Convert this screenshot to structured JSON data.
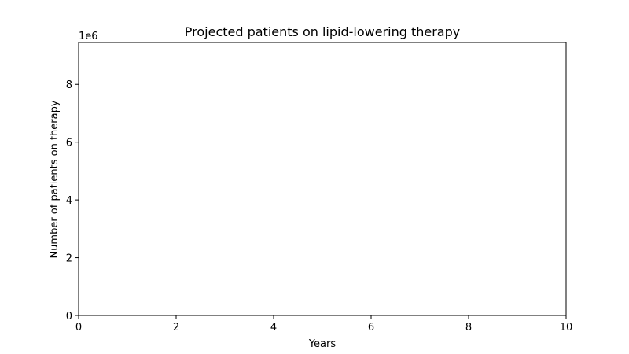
{
  "chart_data": {
    "type": "line",
    "title": "Projected patients on lipid-lowering therapy",
    "xlabel": "Years",
    "ylabel": "Number of patients on therapy",
    "xlim": [
      0,
      10
    ],
    "ylim": [
      0,
      9450000
    ],
    "x_ticks": [
      0,
      2,
      4,
      6,
      8,
      10
    ],
    "x_tick_labels": [
      "0",
      "2",
      "4",
      "6",
      "8",
      "10"
    ],
    "y_ticks": [
      0,
      2000000,
      4000000,
      6000000,
      8000000
    ],
    "y_tick_labels": [
      "0",
      "2",
      "4",
      "6",
      "8"
    ],
    "y_offset_label": "1e6",
    "series": [],
    "grid": false,
    "legend": "none"
  }
}
